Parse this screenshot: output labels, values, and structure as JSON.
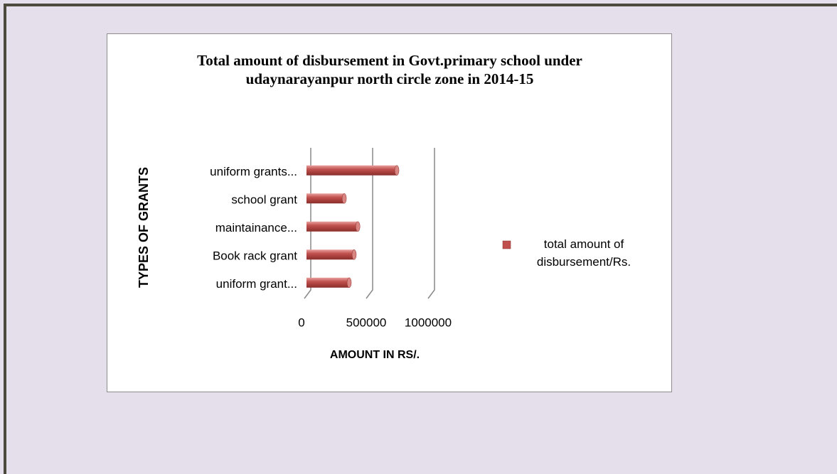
{
  "chart_data": {
    "type": "bar",
    "orientation": "horizontal",
    "title": "Total amount of disbursement in Govt.primary school under udaynarayanpur north circle zone in 2014-15",
    "categories": [
      "uniform grant...",
      "Book rack grant",
      "maintainance...",
      "school grant",
      "uniform grants..."
    ],
    "series": [
      {
        "name": "total amount of disbursement/Rs.",
        "color": "#c0504d",
        "values": [
          345000,
          385000,
          415000,
          305000,
          730000
        ]
      }
    ],
    "xlim": [
      0,
      1000000
    ],
    "xticks": [
      0,
      500000,
      1000000
    ],
    "grid": true,
    "xlabel": "AMOUNT IN RS/.",
    "ylabel": "TYPES OF GRANTS",
    "legend": "right"
  }
}
